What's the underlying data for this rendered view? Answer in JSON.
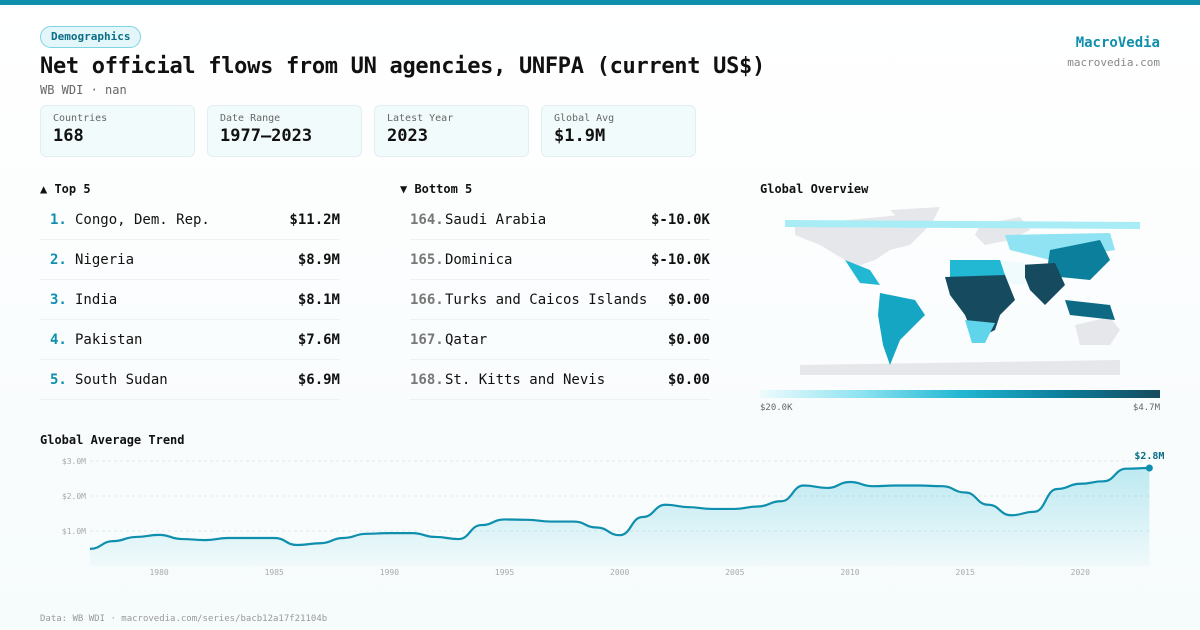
{
  "header": {
    "category": "Demographics",
    "title": "Net official flows from UN agencies, UNFPA (current US$)",
    "subtitle": "WB WDI · nan",
    "brand": "MacroVedia",
    "brand_url": "macrovedia.com"
  },
  "stats": [
    {
      "label": "Countries",
      "value": "168"
    },
    {
      "label": "Date Range",
      "value": "1977–2023"
    },
    {
      "label": "Latest Year",
      "value": "2023"
    },
    {
      "label": "Global Avg",
      "value": "$1.9M"
    }
  ],
  "top5": {
    "title": "▲ Top 5",
    "items": [
      {
        "rank": "1.",
        "name": "Congo, Dem. Rep.",
        "value": "$11.2M"
      },
      {
        "rank": "2.",
        "name": "Nigeria",
        "value": "$8.9M"
      },
      {
        "rank": "3.",
        "name": "India",
        "value": "$8.1M"
      },
      {
        "rank": "4.",
        "name": "Pakistan",
        "value": "$7.6M"
      },
      {
        "rank": "5.",
        "name": "South Sudan",
        "value": "$6.9M"
      }
    ]
  },
  "bottom5": {
    "title": "▼ Bottom 5",
    "items": [
      {
        "rank": "164.",
        "name": "Saudi Arabia",
        "value": "$-10.0K"
      },
      {
        "rank": "165.",
        "name": "Dominica",
        "value": "$-10.0K"
      },
      {
        "rank": "166.",
        "name": "Turks and Caicos Islands",
        "value": "$0.00"
      },
      {
        "rank": "167.",
        "name": "Qatar",
        "value": "$0.00"
      },
      {
        "rank": "168.",
        "name": "St. Kitts and Nevis",
        "value": "$0.00"
      }
    ]
  },
  "map": {
    "title": "Global Overview",
    "legend_min": "$20.0K",
    "legend_max": "$4.7M",
    "colors": {
      "low": "#effbfd",
      "mid": "#22b8d3",
      "high": "#164a5e",
      "nodata": "#e5e7ea"
    }
  },
  "chart_data": {
    "type": "area",
    "title": "Global Average Trend",
    "accent": "#0e8fae",
    "ylim": [
      0,
      3.0
    ],
    "yticks": [
      "$1.0M",
      "$2.0M",
      "$3.0M"
    ],
    "xticks": [
      "1980",
      "1985",
      "1990",
      "1995",
      "2000",
      "2005",
      "2010",
      "2015",
      "2020"
    ],
    "end_label": "$2.8M",
    "grid": true,
    "x": [
      1977,
      1978,
      1979,
      1980,
      1981,
      1982,
      1983,
      1984,
      1985,
      1986,
      1987,
      1988,
      1989,
      1990,
      1991,
      1992,
      1993,
      1994,
      1995,
      1996,
      1997,
      1998,
      1999,
      2000,
      2001,
      2002,
      2003,
      2004,
      2005,
      2006,
      2007,
      2008,
      2009,
      2010,
      2011,
      2012,
      2013,
      2014,
      2015,
      2016,
      2017,
      2018,
      2019,
      2020,
      2021,
      2022,
      2023
    ],
    "y": [
      0.49,
      0.71,
      0.83,
      0.89,
      0.77,
      0.74,
      0.8,
      0.8,
      0.8,
      0.6,
      0.65,
      0.8,
      0.92,
      0.94,
      0.94,
      0.83,
      0.77,
      1.17,
      1.33,
      1.32,
      1.27,
      1.27,
      1.1,
      0.88,
      1.4,
      1.75,
      1.68,
      1.63,
      1.63,
      1.7,
      1.85,
      2.3,
      2.23,
      2.4,
      2.28,
      2.3,
      2.3,
      2.28,
      2.1,
      1.75,
      1.45,
      1.55,
      2.2,
      2.35,
      2.42,
      2.78,
      2.8
    ]
  },
  "footer": "Data: WB WDI · macrovedia.com/series/bacb12a17f21104b"
}
